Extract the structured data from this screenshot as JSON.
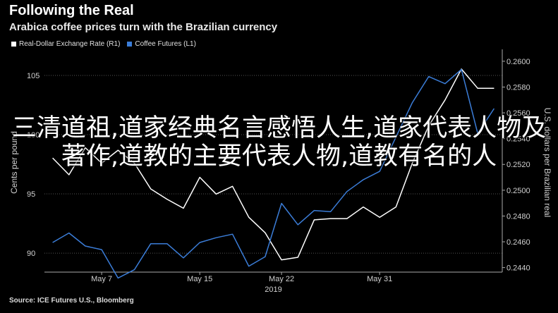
{
  "chart_data": {
    "type": "line",
    "title": "Following the Real",
    "subtitle": "Arabica coffee prices turn with the Brazilian currency",
    "source": "Source: ICE Futures U.S., Bloomberg",
    "xlabel": "2019",
    "x_ticks": [
      "May 7",
      "May 15",
      "May 22",
      "May 31"
    ],
    "left_axis": {
      "label": "Cents per pound",
      "ticks": [
        "90",
        "95",
        "100",
        "105"
      ],
      "ylim": [
        88.4,
        106.9
      ]
    },
    "right_axis": {
      "label": "U.S. dollars per Brazilian real",
      "ticks": [
        "0.2440",
        "0.2460",
        "0.2480",
        "0.2500",
        "0.2520",
        "0.2540",
        "0.2560",
        "0.2580",
        "0.2600"
      ],
      "ylim": [
        0.24365,
        0.26065
      ]
    },
    "series": [
      {
        "name": "Real-Dollar Exchange Rate (R1)",
        "axis": "right",
        "color": "#ffffff",
        "values": [
          0.2525,
          0.2512,
          0.2533,
          0.2521,
          0.2531,
          0.2521,
          0.2501,
          0.2493,
          0.2486,
          0.251,
          0.2497,
          0.2503,
          0.2479,
          0.2467,
          0.2446,
          0.2448,
          0.2477,
          0.2478,
          0.2478,
          0.2487,
          0.2479,
          0.2487,
          0.2521,
          0.255,
          0.257,
          0.2594,
          0.2579,
          0.2579
        ]
      },
      {
        "name": "Coffee Futures (L1)",
        "axis": "left",
        "color": "#3b7dd8",
        "values": [
          90.9,
          91.7,
          90.6,
          90.3,
          87.9,
          88.6,
          90.8,
          90.8,
          89.6,
          90.9,
          91.3,
          91.6,
          88.9,
          89.7,
          94.2,
          92.4,
          93.6,
          93.5,
          95.2,
          96.2,
          96.9,
          99.8,
          102.7,
          104.9,
          104.3,
          105.5,
          100.1,
          102.2
        ]
      }
    ]
  },
  "legend": {
    "r1": "Real-Dollar Exchange Rate (R1)",
    "l1": "Coffee Futures (L1)"
  },
  "overlay_text": "三清道祖,道家经典名言感悟人生,道家代表人物及著作,道教的主要代表人物,道教有名的人"
}
